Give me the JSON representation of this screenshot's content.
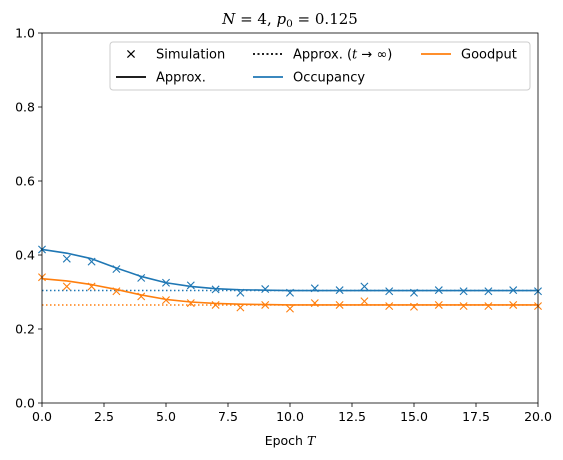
{
  "chart_data": {
    "type": "line",
    "title": "N = 4, p₀ = 0.125",
    "xlabel": "Epoch T",
    "ylabel": "",
    "xlim": [
      0,
      20
    ],
    "ylim": [
      0,
      1
    ],
    "xticks": [
      "0.0",
      "2.5",
      "5.0",
      "7.5",
      "10.0",
      "12.5",
      "15.0",
      "17.5",
      "20.0"
    ],
    "yticks": [
      "0.0",
      "0.2",
      "0.4",
      "0.6",
      "0.8",
      "1.0"
    ],
    "grid": false,
    "legend": {
      "placement": "top-right",
      "entries": [
        {
          "label": "Simulation",
          "style": "marker-x",
          "color": "#000000"
        },
        {
          "label": "Approx.",
          "style": "solid",
          "color": "#000000"
        },
        {
          "label": "Approx. (t → ∞)",
          "style": "dotted",
          "color": "#000000"
        },
        {
          "label": "Occupancy",
          "style": "solid",
          "color": "#1f77b4"
        },
        {
          "label": "Goodput",
          "style": "solid",
          "color": "#ff7f0e"
        }
      ]
    },
    "series": [
      {
        "name": "Occupancy",
        "color": "#1f77b4",
        "simulation": {
          "x": [
            0,
            1,
            2,
            3,
            4,
            5,
            6,
            7,
            8,
            9,
            10,
            11,
            12,
            13,
            14,
            15,
            16,
            17,
            18,
            19,
            20
          ],
          "y": [
            0.415,
            0.39,
            0.382,
            0.362,
            0.338,
            0.325,
            0.318,
            0.307,
            0.298,
            0.308,
            0.298,
            0.31,
            0.305,
            0.315,
            0.302,
            0.298,
            0.305,
            0.302,
            0.302,
            0.305,
            0.302
          ]
        },
        "approx": {
          "x": [
            0,
            1,
            2,
            3,
            4,
            5,
            6,
            7,
            8,
            9,
            10,
            11,
            12,
            13,
            14,
            15,
            16,
            17,
            18,
            19,
            20
          ],
          "y": [
            0.415,
            0.405,
            0.39,
            0.365,
            0.342,
            0.325,
            0.315,
            0.309,
            0.306,
            0.305,
            0.304,
            0.304,
            0.304,
            0.304,
            0.304,
            0.304,
            0.304,
            0.304,
            0.304,
            0.304,
            0.304
          ]
        },
        "asymptote": 0.304
      },
      {
        "name": "Goodput",
        "color": "#ff7f0e",
        "simulation": {
          "x": [
            0,
            1,
            2,
            3,
            4,
            5,
            6,
            7,
            8,
            9,
            10,
            11,
            12,
            13,
            14,
            15,
            16,
            17,
            18,
            19,
            20
          ],
          "y": [
            0.34,
            0.315,
            0.315,
            0.302,
            0.288,
            0.278,
            0.27,
            0.265,
            0.258,
            0.265,
            0.255,
            0.27,
            0.265,
            0.275,
            0.262,
            0.26,
            0.265,
            0.262,
            0.262,
            0.265,
            0.262
          ]
        },
        "approx": {
          "x": [
            0,
            1,
            2,
            3,
            4,
            5,
            6,
            7,
            8,
            9,
            10,
            11,
            12,
            13,
            14,
            15,
            16,
            17,
            18,
            19,
            20
          ],
          "y": [
            0.336,
            0.33,
            0.32,
            0.307,
            0.292,
            0.28,
            0.273,
            0.269,
            0.267,
            0.266,
            0.265,
            0.265,
            0.265,
            0.265,
            0.265,
            0.265,
            0.265,
            0.265,
            0.265,
            0.265,
            0.265
          ]
        },
        "asymptote": 0.265
      }
    ]
  }
}
